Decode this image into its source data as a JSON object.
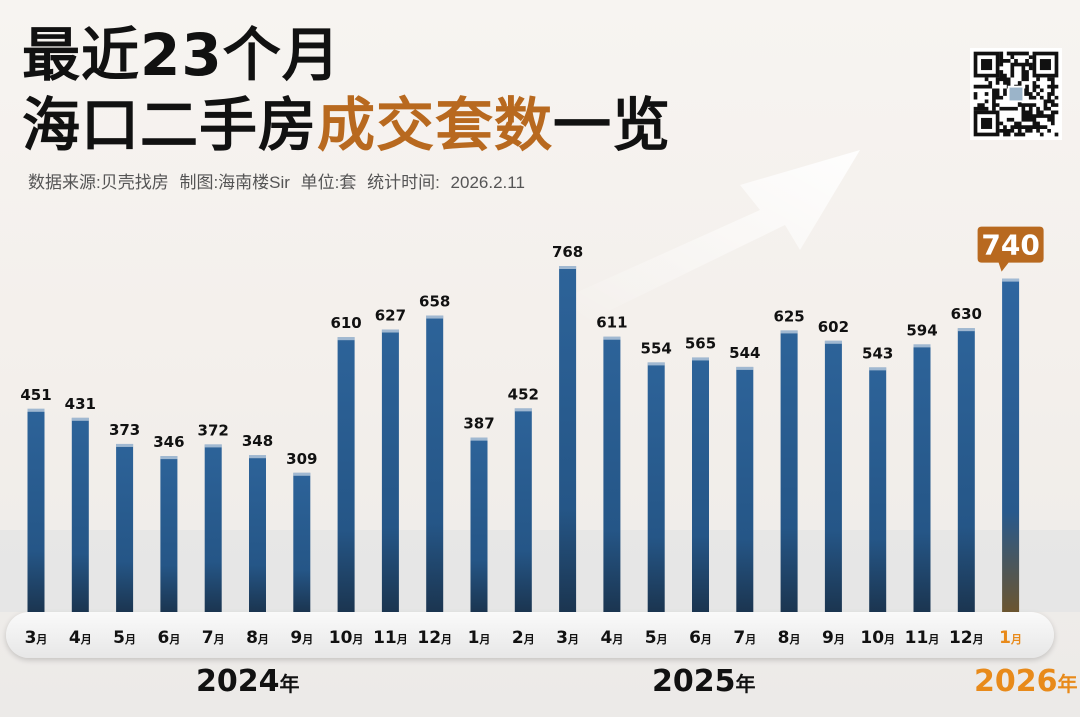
{
  "title": {
    "line1": "最近23个月",
    "line2_prefix": "海口二手房",
    "line2_accent": "成交套数",
    "line2_suffix": "一览"
  },
  "source_line": "数据来源:贝壳找房  制图:海南楼Sir  单位:套  统计时间: 2026.2.11",
  "colors": {
    "bar_blue": "#2a5e93",
    "accent_orange": "#b8691f",
    "highlight_orange": "#e88a1a",
    "title_black": "#111111"
  },
  "chart_data": {
    "type": "bar",
    "title": "最近23个月 海口二手房成交套数一览",
    "unit": "套",
    "categories": [
      "3月",
      "4月",
      "5月",
      "6月",
      "7月",
      "8月",
      "9月",
      "10月",
      "11月",
      "12月",
      "1月",
      "2月",
      "3月",
      "4月",
      "5月",
      "6月",
      "7月",
      "8月",
      "9月",
      "10月",
      "11月",
      "12月",
      "1月"
    ],
    "years": [
      "2024年",
      "2024年",
      "2024年",
      "2024年",
      "2024年",
      "2024年",
      "2024年",
      "2024年",
      "2024年",
      "2024年",
      "2025年",
      "2025年",
      "2025年",
      "2025年",
      "2025年",
      "2025年",
      "2025年",
      "2025年",
      "2025年",
      "2025年",
      "2025年",
      "2025年",
      "2026年"
    ],
    "values": [
      451,
      431,
      373,
      346,
      372,
      348,
      309,
      610,
      627,
      658,
      387,
      452,
      768,
      611,
      554,
      565,
      544,
      625,
      602,
      543,
      594,
      630,
      740
    ],
    "highlight_index": 22,
    "year_labels": [
      {
        "year": "2024",
        "suffix": "年"
      },
      {
        "year": "2025",
        "suffix": "年"
      },
      {
        "year": "2026",
        "suffix": "年"
      }
    ],
    "ylim": [
      0,
      800
    ],
    "grid": false,
    "legend": "none"
  }
}
